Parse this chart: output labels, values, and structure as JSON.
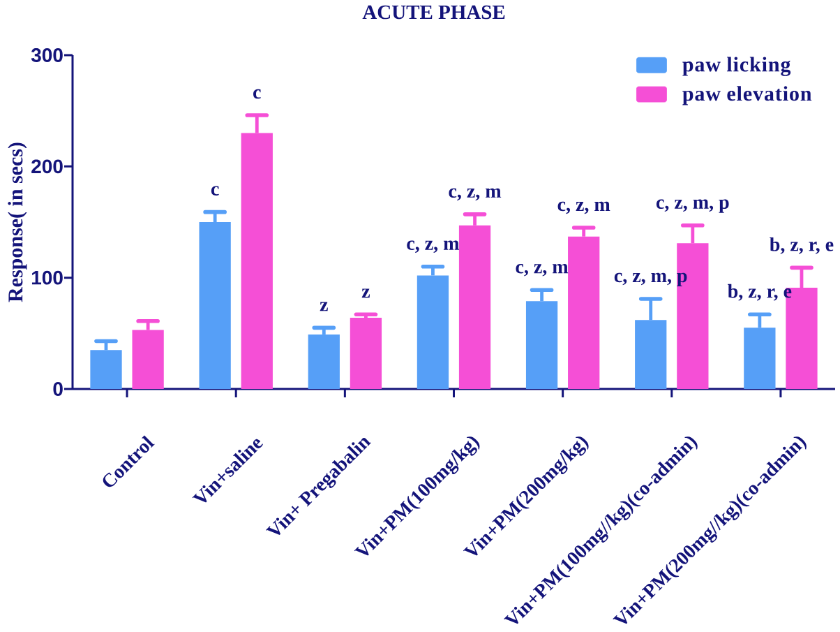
{
  "chart_data": {
    "type": "bar",
    "title": "ACUTE PHASE",
    "ylabel": "Response( in secs)",
    "categories": [
      "Control",
      "Vin+saline",
      "Vin+ Pregabalin",
      "Vin+PM(100mg/kg)",
      "Vin+PM(200mg/kg)",
      "Vin+PM(100mg//kg)(co-admin)",
      "Vin+PM(200mg//kg)(co-admin)"
    ],
    "series": [
      {
        "name": "paw licking",
        "color": "#569ff7",
        "values": [
          35,
          150,
          49,
          102,
          79,
          62,
          55
        ],
        "errors": [
          8,
          9,
          6,
          8,
          10,
          19,
          12
        ],
        "value_labels": [
          null,
          "c",
          "z",
          "c, z, m",
          "c, z, m",
          "c, z, m, p",
          "b, z, r, e"
        ]
      },
      {
        "name": "paw elevation",
        "color": "#f54fd6",
        "values": [
          53,
          230,
          64,
          147,
          137,
          131,
          91
        ],
        "errors": [
          8,
          16,
          3,
          10,
          8,
          16,
          18
        ],
        "value_labels": [
          null,
          "c",
          "z",
          "c, z, m",
          "c, z, m",
          "c, z, m, p",
          "b, z, r, e"
        ]
      }
    ],
    "ylim": [
      0,
      300
    ],
    "yticks": [
      0,
      100,
      200,
      300
    ],
    "legend": "top right"
  }
}
